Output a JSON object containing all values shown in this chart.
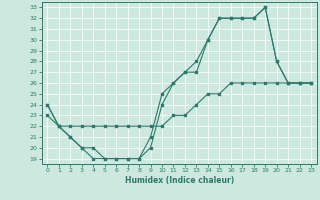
{
  "xlabel": "Humidex (Indice chaleur)",
  "bg_color": "#cce8df",
  "line_color": "#2d7a6a",
  "grid_color": "#ffffff",
  "xlim": [
    -0.5,
    23.5
  ],
  "ylim": [
    18.5,
    33.5
  ],
  "xticks": [
    0,
    1,
    2,
    3,
    4,
    5,
    6,
    7,
    8,
    9,
    10,
    11,
    12,
    13,
    14,
    15,
    16,
    17,
    18,
    19,
    20,
    21,
    22,
    23
  ],
  "yticks": [
    19,
    20,
    21,
    22,
    23,
    24,
    25,
    26,
    27,
    28,
    29,
    30,
    31,
    32,
    33
  ],
  "line1_x": [
    0,
    1,
    2,
    3,
    4,
    5,
    6,
    7,
    8,
    9,
    10,
    11,
    12,
    13,
    14,
    15,
    16,
    17,
    18,
    19,
    20,
    21,
    22,
    23
  ],
  "line1_y": [
    24,
    22,
    21,
    20,
    19,
    19,
    19,
    19,
    19,
    21,
    25,
    26,
    27,
    28,
    30,
    32,
    32,
    32,
    32,
    33,
    28,
    26,
    26,
    26
  ],
  "line2_x": [
    0,
    1,
    2,
    3,
    4,
    5,
    6,
    7,
    8,
    9,
    10,
    11,
    12,
    13,
    14,
    15,
    16,
    17,
    18,
    19,
    20,
    21,
    22,
    23
  ],
  "line2_y": [
    24,
    22,
    21,
    20,
    20,
    19,
    19,
    19,
    19,
    20,
    24,
    26,
    27,
    27,
    30,
    32,
    32,
    32,
    32,
    33,
    28,
    26,
    26,
    26
  ],
  "line3_x": [
    0,
    1,
    2,
    3,
    4,
    5,
    6,
    7,
    8,
    9,
    10,
    11,
    12,
    13,
    14,
    15,
    16,
    17,
    18,
    19,
    20,
    21,
    22,
    23
  ],
  "line3_y": [
    23,
    22,
    22,
    22,
    22,
    22,
    22,
    22,
    22,
    22,
    22,
    23,
    23,
    24,
    25,
    25,
    26,
    26,
    26,
    26,
    26,
    26,
    26,
    26
  ]
}
